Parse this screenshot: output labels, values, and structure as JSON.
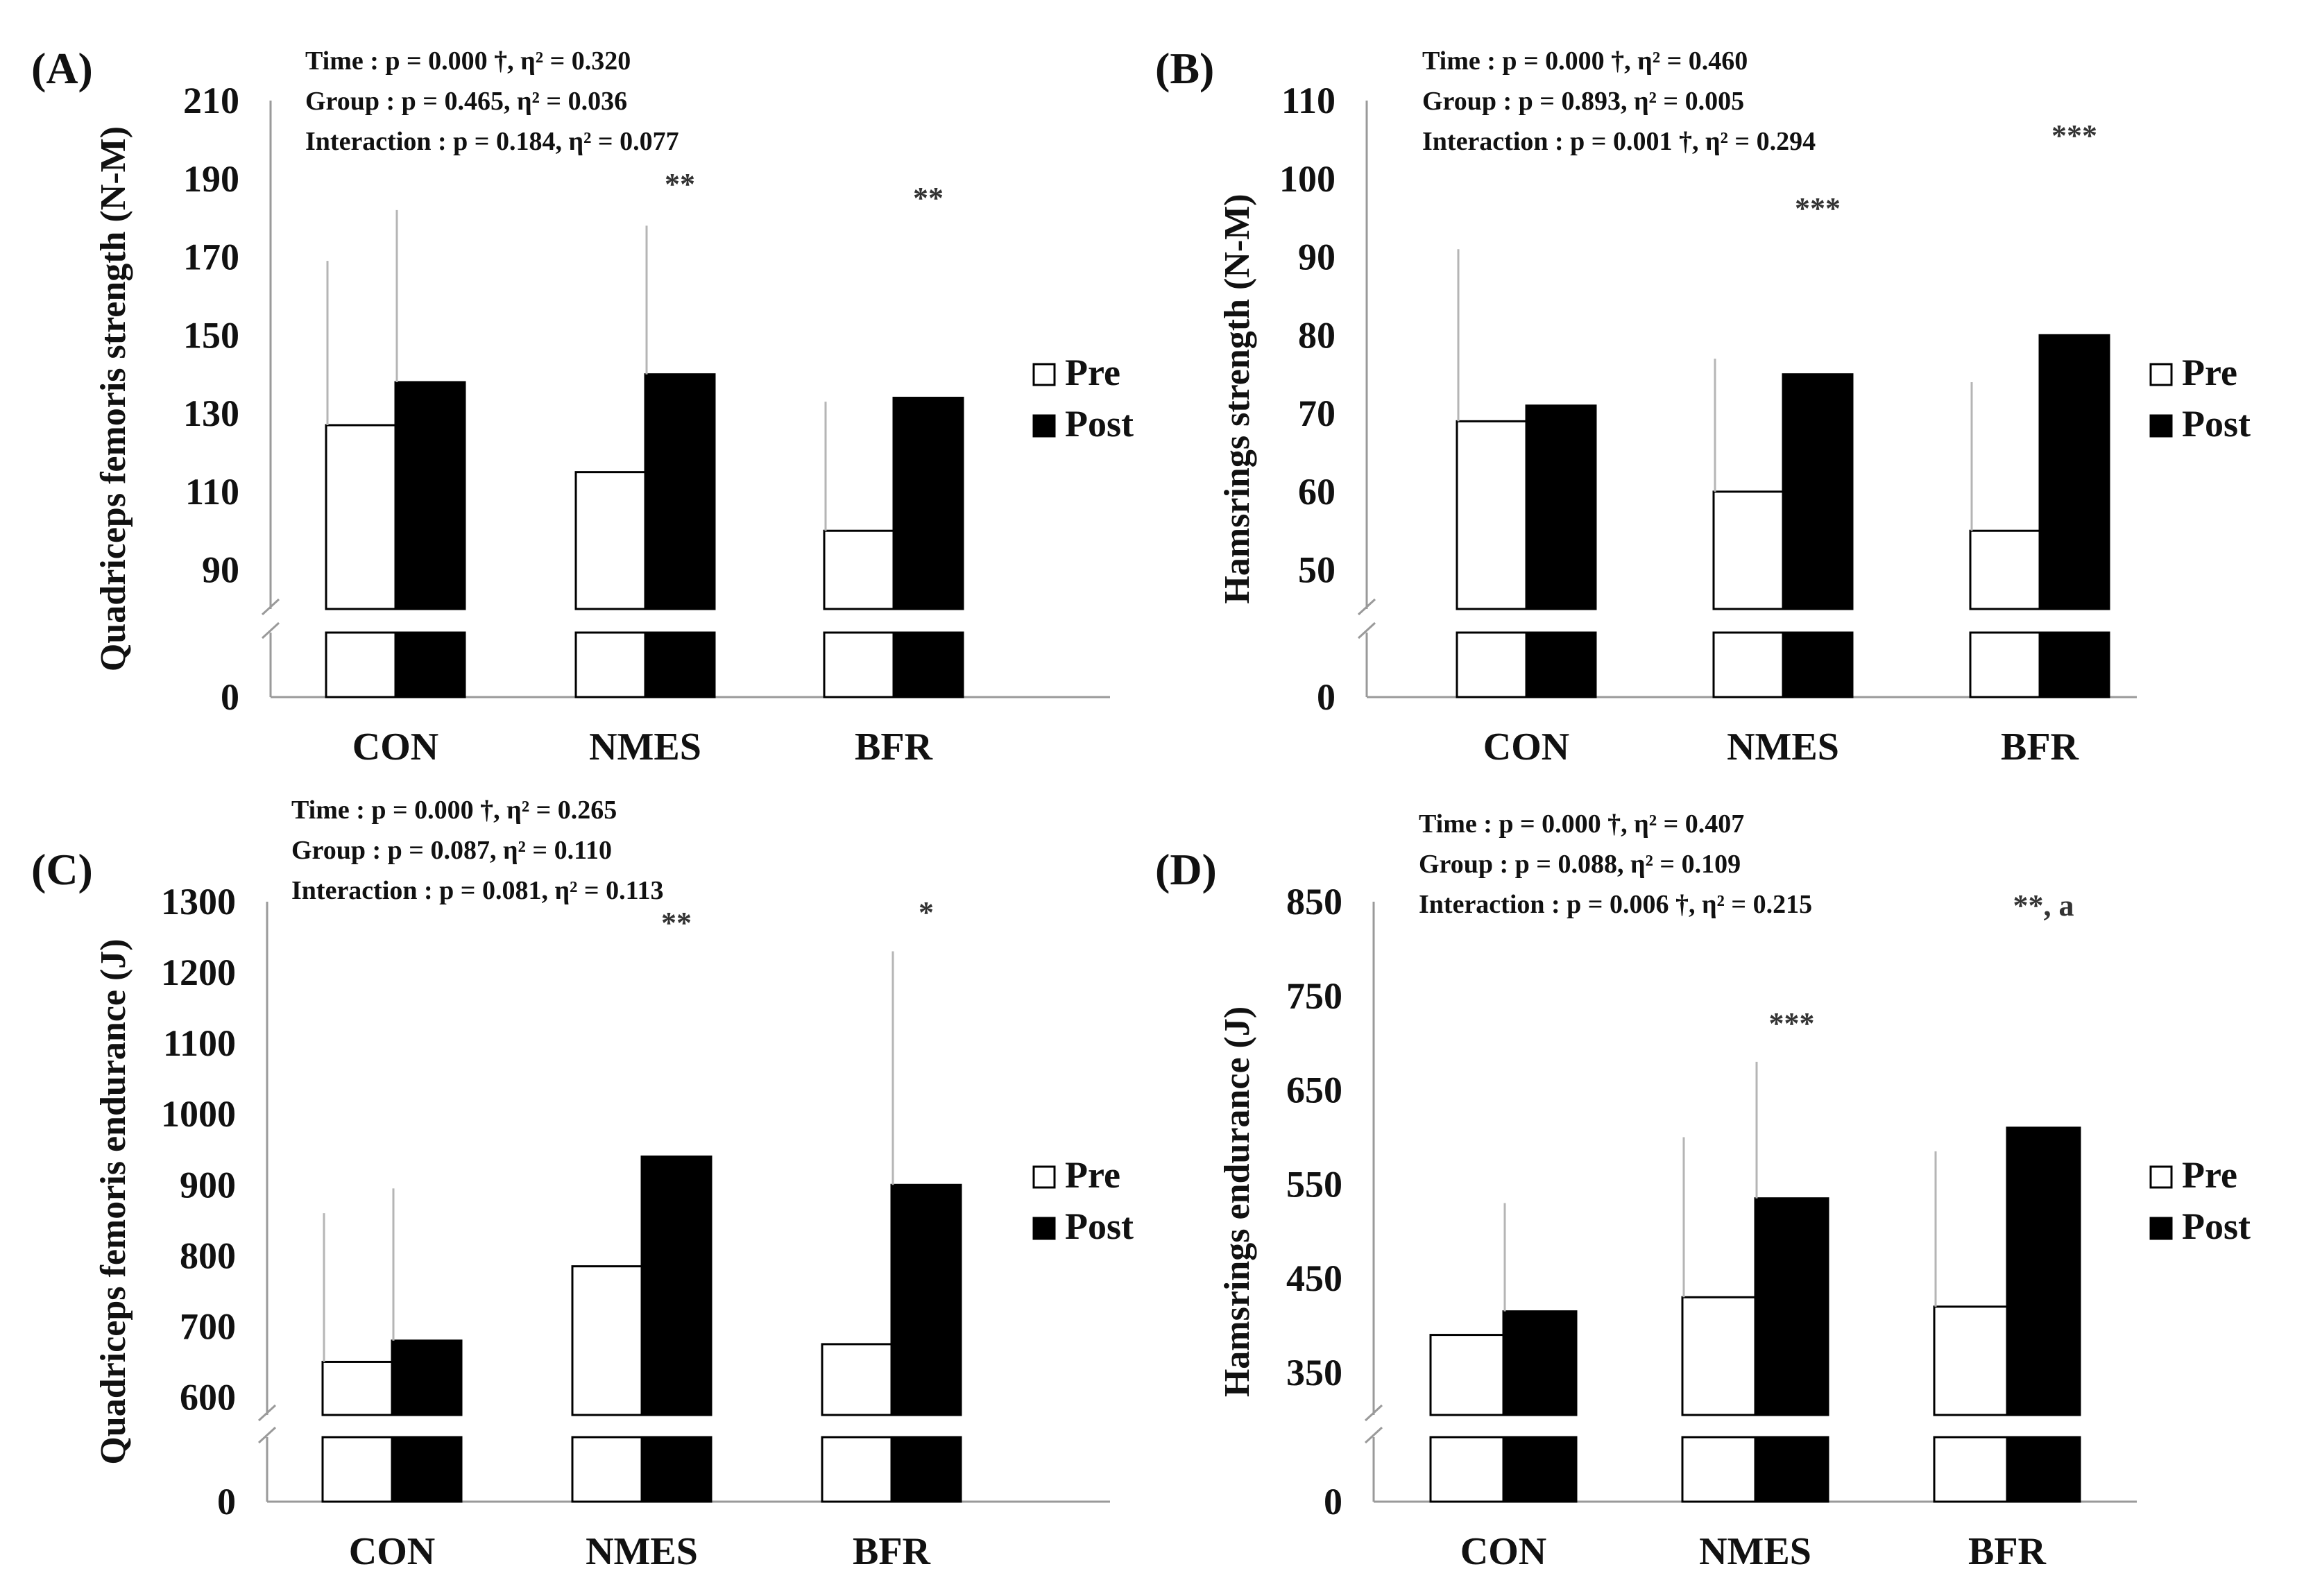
{
  "colors": {
    "pre_fill": "#ffffff",
    "post_fill": "#000000",
    "bar_stroke": "#000000",
    "axis": "#9a9a9a"
  },
  "chart_data": [
    {
      "type": "bar",
      "panel_label": "(A)",
      "ylabel": "Quadriceps femoris strength (N-M)",
      "categories": [
        "CON",
        "NMES",
        "BFR"
      ],
      "legend": [
        "Pre",
        "Post"
      ],
      "ylim": [
        80,
        210
      ],
      "axis_break": true,
      "y_ticks": [
        "0",
        "90",
        "110",
        "130",
        "150",
        "170",
        "190",
        "210"
      ],
      "series": [
        {
          "name": "Pre",
          "values": [
            127,
            115,
            100
          ],
          "errors": [
            42,
            0,
            33
          ]
        },
        {
          "name": "Post",
          "values": [
            138,
            140,
            134
          ],
          "errors": [
            44,
            38,
            0
          ]
        }
      ],
      "stats": {
        "time": "Time : p = 0.000 †,  η² = 0.320",
        "group": "Group : p = 0.465,  η² = 0.036",
        "interaction": "Interaction : p = 0.184, η² = 0.077"
      },
      "significance": [
        "",
        "**",
        "**"
      ]
    },
    {
      "type": "bar",
      "panel_label": "(B)",
      "ylabel": "Hamsrings strength (N-M)",
      "categories": [
        "CON",
        "NMES",
        "BFR"
      ],
      "legend": [
        "Pre",
        "Post"
      ],
      "ylim": [
        45,
        110
      ],
      "axis_break": true,
      "y_ticks": [
        "0",
        "50",
        "60",
        "70",
        "80",
        "90",
        "100",
        "110"
      ],
      "series": [
        {
          "name": "Pre",
          "values": [
            69,
            60,
            55
          ],
          "errors": [
            22,
            17,
            19
          ]
        },
        {
          "name": "Post",
          "values": [
            71,
            75,
            80
          ],
          "errors": [
            0,
            0,
            0
          ]
        }
      ],
      "stats": {
        "time": "Time : p = 0.000 †,  η² = 0.460",
        "group": "Group : p = 0.893,  η² = 0.005",
        "interaction": "Interaction : p = 0.001 †, η² = 0.294"
      },
      "significance": [
        "",
        "***",
        "***"
      ]
    },
    {
      "type": "bar",
      "panel_label": "(C)",
      "ylabel": "Quadriceps femoris endurance (J)",
      "categories": [
        "CON",
        "NMES",
        "BFR"
      ],
      "legend": [
        "Pre",
        "Post"
      ],
      "ylim": [
        575,
        1300
      ],
      "axis_break": true,
      "y_ticks": [
        "0",
        "600",
        "700",
        "800",
        "900",
        "1000",
        "1100",
        "1200",
        "1300"
      ],
      "series": [
        {
          "name": "Pre",
          "values": [
            650,
            785,
            675
          ],
          "errors": [
            210,
            0,
            0
          ]
        },
        {
          "name": "Post",
          "values": [
            680,
            940,
            900
          ],
          "errors": [
            215,
            0,
            330
          ]
        }
      ],
      "stats": {
        "time": "Time : p = 0.000 †,  η² = 0.265",
        "group": "Group : p = 0.087,  η² = 0.110",
        "interaction": "Interaction : p = 0.081, η² = 0.113"
      },
      "significance": [
        "",
        "**",
        "*"
      ]
    },
    {
      "type": "bar",
      "panel_label": "(D)",
      "ylabel": "Hamsrings endurance (J)",
      "categories": [
        "CON",
        "NMES",
        "BFR"
      ],
      "legend": [
        "Pre",
        "Post"
      ],
      "ylim": [
        305,
        850
      ],
      "axis_break": true,
      "y_ticks": [
        "0",
        "350",
        "450",
        "550",
        "650",
        "750",
        "850"
      ],
      "series": [
        {
          "name": "Pre",
          "values": [
            390,
            430,
            420
          ],
          "errors": [
            0,
            170,
            165
          ]
        },
        {
          "name": "Post",
          "values": [
            415,
            535,
            610
          ],
          "errors": [
            115,
            145,
            0
          ]
        }
      ],
      "stats": {
        "time": "Time : p = 0.000 †,  η² = 0.407",
        "group": "Group : p = 0.088,  η² = 0.109",
        "interaction": "Interaction : p = 0.006 †, η² = 0.215"
      },
      "significance": [
        "",
        "***",
        "**, a"
      ]
    }
  ]
}
